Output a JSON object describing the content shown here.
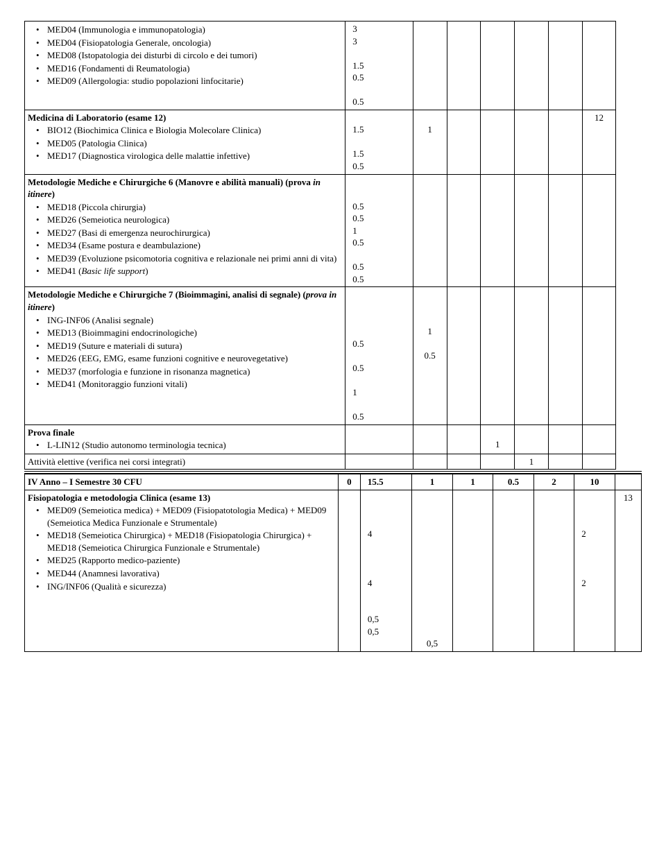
{
  "rows": {
    "r1": {
      "items": [
        "MED04 (Immunologia e immunopatologia)",
        "MED04 (Fisiopatologia Generale, oncologia)",
        "MED08 (Istopatologia dei disturbi di circolo e dei tumori)",
        "MED16 (Fondamenti di Reumatologia)",
        "MED09 (Allergologia: studio popolazioni linfocitarie)"
      ],
      "c2": "3\n3\n\n1.5\n0.5\n\n0.5"
    },
    "r2": {
      "title": "Medicina di Laboratorio (esame 12)",
      "items": [
        "BIO12 (Biochimica Clinica e Biologia Molecolare Clinica)",
        "MED05 (Patologia Clinica)",
        "MED17 (Diagnostica virologica delle malattie infettive)"
      ],
      "c2": "\n1.5\n\n1.5\n0.5",
      "c4": "\n1",
      "last": "12"
    },
    "r3": {
      "title": "Metodologie Mediche e Chirurgiche 6 (Manovre e abilità manuali) (prova ",
      "title_em": "in itinere",
      "title_tail": ")",
      "items": [
        "MED18 (Piccola chirurgia)",
        "MED26 (Semeiotica neurologica)",
        "MED27 (Basi di emergenza neurochirurgica)",
        "MED34 (Esame postura e deambulazione)",
        "MED39 (Evoluzione psicomotoria cognitiva e relazionale nei primi anni di vita)",
        "MED41 (Basic life support)"
      ],
      "c2": "\n\n0.5\n0.5\n1\n0.5\n\n0.5\n0.5"
    },
    "r4": {
      "title": "Metodologie Mediche e Chirurgiche 7 (Bioimmagini, analisi di segnale) (",
      "title_em": "prova in itinere",
      "title_tail": ")",
      "items": [
        "ING-INF06 (Analisi segnale)",
        "MED13 (Bioimmagini endocrinologiche)",
        "MED19 (Suture e materiali di sutura)",
        "MED26 (EEG, EMG, esame funzioni cognitive e neurovegetative)",
        "MED37 (morfologia e funzione in risonanza magnetica)",
        "MED41 (Monitoraggio funzioni vitali)"
      ],
      "c2": "\n\n\n\n0.5\n\n0.5\n\n1\n\n0.5",
      "c4": "\n\n\n1\n\n0.5"
    },
    "r5": {
      "title": "Prova finale",
      "items": [
        "L-LIN12 (Studio autonomo terminologia tecnica)"
      ],
      "c6": "\n1"
    },
    "r6": {
      "text": "Attività elettive (verifica nei corsi integrati)",
      "c7": "1"
    }
  },
  "semester": {
    "label": "IV Anno – I Semestre 30 CFU",
    "c2": "0",
    "c3": "15.5",
    "c4": "1",
    "c5": "1",
    "c6": "0.5",
    "c7": "2",
    "c8": "10"
  },
  "r7": {
    "title": "Fisiopatologia e metodologia Clinica (esame 13)",
    "items": [
      "MED09 (Semeiotica medica) + MED09 (Fisiopatotologia  Medica) + MED09 (Semeiotica Medica Funzionale e Strumentale)",
      "MED18 (Semeiotica Chirurgica) + MED18 (Fisiopatologia Chirurgica) + MED18 (Semeiotica Chirurgica Funzionale e Strumentale)",
      "MED25 (Rapporto medico-paziente)",
      "MED44 (Anamnesi lavorativa)",
      "ING/INF06 (Qualità e sicurezza)"
    ],
    "c3": "\n\n\n4\n\n\n\n4\n\n\n0,5\n0,5",
    "c4": "\n\n\n\n\n\n\n\n\n\n\n\n0,5",
    "c8": "\n\n\n2\n\n\n\n2",
    "last": "13"
  }
}
